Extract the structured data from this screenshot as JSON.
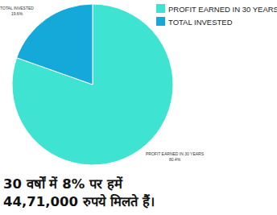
{
  "chart_data": {
    "type": "pie",
    "categories": [
      "PROFIT EARNED IN 30 YEARS",
      "TOTAL INVESTED"
    ],
    "values": [
      80.4,
      19.6
    ],
    "value_labels": [
      "80.4%",
      "19.6%"
    ],
    "colors": [
      "#3fe3d2",
      "#14a9d8"
    ],
    "data_labels": true,
    "legend": "top-right",
    "annotations": [
      "30 वर्षों में 8% पर हमें",
      "44,71,000 रुपये मिलते हैं।"
    ]
  }
}
